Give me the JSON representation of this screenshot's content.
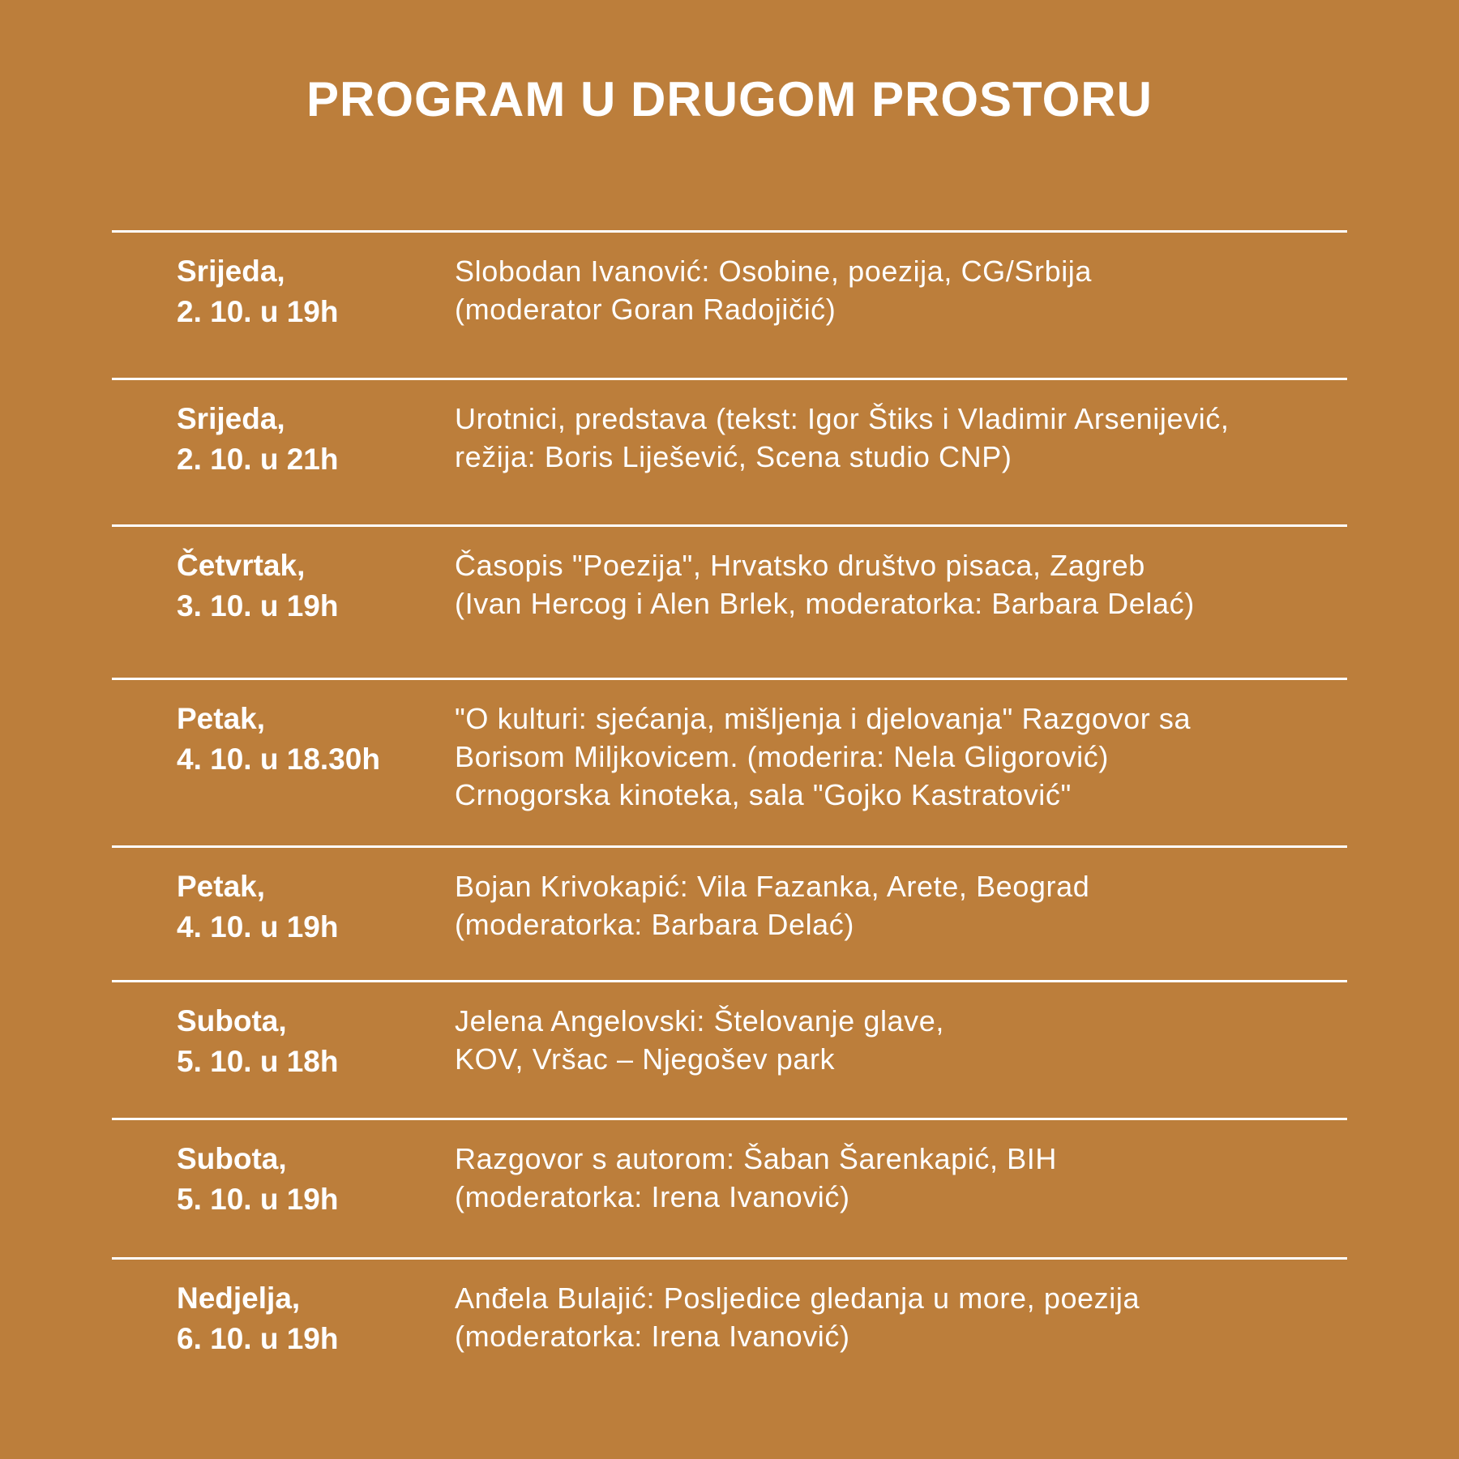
{
  "title": "PROGRAM U DRUGOM PROSTORU",
  "events": [
    {
      "day": "Srijeda,",
      "time": "2. 10. u 19h",
      "lines": [
        "Slobodan Ivanović: Osobine, poezija, CG/Srbija",
        "(moderator Goran Radojičić)"
      ]
    },
    {
      "day": "Srijeda,",
      "time": "2. 10. u 21h",
      "lines": [
        "Urotnici, predstava (tekst: Igor Štiks i Vladimir Arsenijević,",
        "režija: Boris Liješević, Scena studio CNP)"
      ]
    },
    {
      "day": "Četvrtak,",
      "time": "3. 10. u 19h",
      "lines": [
        "Časopis \"Poezija\", Hrvatsko društvo pisaca, Zagreb",
        "(Ivan Hercog i Alen Brlek, moderatorka: Barbara Delać)"
      ]
    },
    {
      "day": "Petak,",
      "time": "4. 10. u 18.30h",
      "lines": [
        "\"O kulturi: sjećanja, mišljenja i djelovanja\" Razgovor sa",
        "Borisom Miljkovicem. (moderira: Nela Gligorović)",
        "Crnogorska kinoteka, sala \"Gojko Kastratović\""
      ]
    },
    {
      "day": "Petak,",
      "time": "4. 10. u 19h",
      "lines": [
        "Bojan Krivokapić: Vila Fazanka, Arete, Beograd",
        "(moderatorka: Barbara Delać)"
      ]
    },
    {
      "day": "Subota,",
      "time": "5. 10. u 18h",
      "lines": [
        "Jelena Angelovski: Štelovanje glave,",
        "KOV, Vršac – Njegošev park"
      ]
    },
    {
      "day": "Subota,",
      "time": "5. 10. u 19h",
      "lines": [
        "Razgovor s autorom: Šaban Šarenkapić, BIH",
        "(moderatorka: Irena Ivanović)"
      ]
    },
    {
      "day": "Nedjelja,",
      "time": "6. 10. u 19h",
      "lines": [
        "Anđela Bulajić: Posljedice gledanja u more, poezija",
        "(moderatorka: Irena Ivanović)"
      ]
    }
  ]
}
